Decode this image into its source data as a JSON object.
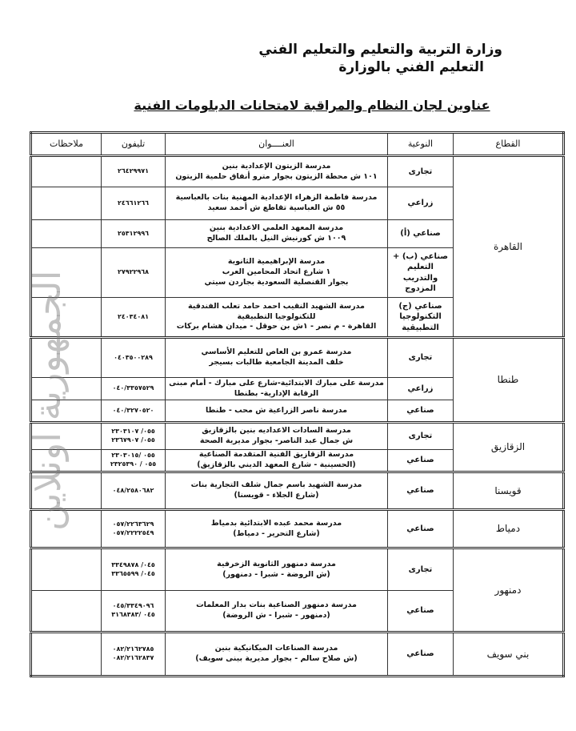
{
  "header": {
    "ministry": "وزارة التربية والتعليم والتعليم الفني",
    "department": "التعليم الفني بالوزارة",
    "title": "عناوين لجان النظام والمراقبة لامتحانات الدبلومات الفنية"
  },
  "table": {
    "columns": [
      "القطاع",
      "النوعية",
      "العنــــوان",
      "تليفون",
      "ملاحظات"
    ],
    "groups": [
      {
        "sector": "القاهرة",
        "rows": [
          {
            "type": "تجارى",
            "address": "مدرسة الزيتون الإعدادية بنين\n١٠١ ش محطة الزيتون بجوار مترو أنفاق حلمية الزيتون",
            "phone": "٢٦٤٢٩٩٧١"
          },
          {
            "type": "زراعي",
            "address": "مدرسة فاطمة الزهراء الإعدادية المهنية بنات بالعباسية\n٥٥ ش العباسية تقاطع ش أحمد سعيد",
            "phone": "٢٤٦٦١٢٦٦"
          },
          {
            "type": "صناعي (أ)",
            "address": "مدرسة المعهد العلمي الاعدادية بنين\n١٠٠٩ ش كورنيش النيل بالملك الصالح",
            "phone": "٢٥٣١٢٩٩٦"
          },
          {
            "type": "صناعي (ب) + التعليم والتدريب المزدوج",
            "address": "مدرسة الإبراهيمية الثانوية\n١ شارع اتحاد المحامين العرب\nبجوار القنصلية السعودية بجاردن سيتي",
            "phone": "٢٧٩٢٢٩٦٨"
          },
          {
            "type": "صناعي (ج) التكنولوجيا التطبيقية",
            "address": "مدرسة الشهيد النقيب احمد حامد تعلب الفندقية للتكنولوجيا التطبيقية\nالقاهرة - م نصر - ١ش بن حوقل - ميدان هشام بركات",
            "phone": "٢٤٠٣٤٠٨١"
          }
        ]
      },
      {
        "sector": "طنطا",
        "rows": [
          {
            "type": "تجارى",
            "address": "مدرسة عمرو بن العاص للتعليم الأساسي\nخلف المدينة الجامعية طالبات بسيجر",
            "phone": "٠٤٠٣٥٠٠٢٨٩"
          },
          {
            "type": "زراعي",
            "address": "مدرسة على مبارك الابتدائية-شارع على مبارك - أمام مبنى الرقابة الإدارية- بطنطا",
            "phone": "٠٤٠/٣٣٥٧٥٢٩"
          },
          {
            "type": "صناعي",
            "address": "مدرسة ناصر الزراعية ش محب - طنطا",
            "phone": "٠٤٠/٣٢٧٠٥٢٠"
          }
        ]
      },
      {
        "sector": "الزقازيق",
        "rows": [
          {
            "type": "تجارى",
            "address": "مدرسة السادات الاعداديه بنين بالزقازيق\nش جمال عبد الناصر- بجوار مديرية الصحة",
            "phone": "٠٥٥/ ٢٣٠٣١٠٧\n٠٥٥/ ٢٣٦٧٩٠٧"
          },
          {
            "type": "صناعي",
            "address": "مدرسة الزقازيق الفنية المتقدمة الصناعية\n(الحسينية - شارع المعهد الديني بالزقازيق)",
            "phone": "٠٥٥ /٢٣٠٣٠١٥\n٠٥٥ / ٢٣٢٥٣٩٠"
          }
        ]
      },
      {
        "sector": "قويسنا",
        "rows": [
          {
            "type": "صناعي",
            "address": "مدرسة الشهيد باسم جمال شلف التجارية بنات\n(شارع الجلاء - قويسنا)",
            "phone": "٠٤٨/٢٥٨٠٦٨٢"
          }
        ]
      },
      {
        "sector": "دمياط",
        "rows": [
          {
            "type": "صناعي",
            "address": "مدرسة محمد عبده الابتدائية بدمياط\n(شارع التحرير - دمياط)",
            "phone": "٠٥٧/٢٢٦٣٦٢٩\n٠٥٧/٢٢٢٢٥٤٩"
          }
        ]
      },
      {
        "sector": "دمنهور",
        "rows": [
          {
            "type": "تجارى",
            "address": "مدرسة دمنهور الثانوية الزخرفية\n(ش الروضة - شبرا - دمنهور)",
            "phone": "٠٤٥/ ٣٣٤٩٨٧٨\n٠٤٥/ ٣٣٦٥٥٩٩"
          },
          {
            "type": "صناعي",
            "address": "مدرسة دمنهور الصناعية بنات بدار المعلمات\n(دمنهور - شبرا - ش الروضة)",
            "phone": "٠٤٥/٣٣٤٩٠٩٦\n٠٤٥ /٣١٦٨٣٨٣"
          }
        ]
      },
      {
        "sector": "بني سويف",
        "rows": [
          {
            "type": "صناعي",
            "address": "مدرسة الصناعات الميكانيكية بنين\n(ش صلاح سالم - بجوار مديرية بينى سويف)",
            "phone": "٠٨٢/٢١٦٢٧٨٥\n٠٨٢/٢١٦٢٨٣٧"
          }
        ]
      }
    ]
  },
  "watermark": "الجمهورية اونلاين"
}
